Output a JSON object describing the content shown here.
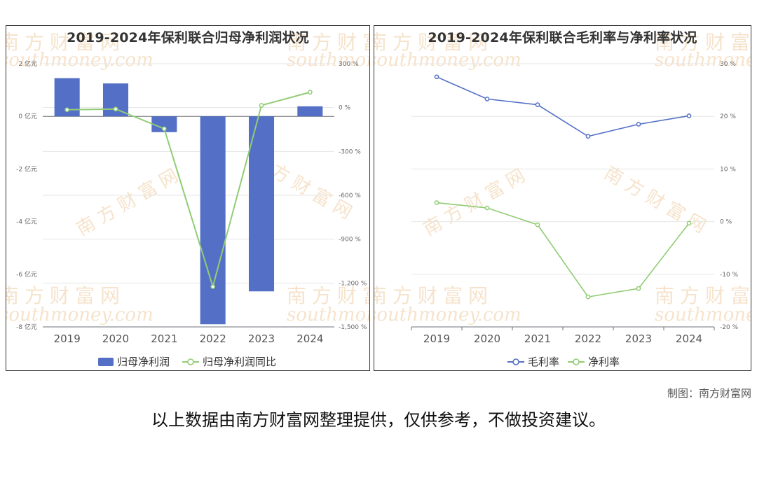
{
  "credit": "制图：南方财富网",
  "disclaimer": "以上数据由南方财富网整理提供，仅供参考，不做投资建议。",
  "watermark": {
    "cn": "南方财富网",
    "en": "southmoney.com",
    "color": "#f6e3cc"
  },
  "chart_data": [
    {
      "type": "bar+line",
      "title": "2019-2024年保利联合归母净利润状况",
      "categories": [
        "2019",
        "2020",
        "2021",
        "2022",
        "2023",
        "2024"
      ],
      "y_left": {
        "ticks": [
          "2 亿元",
          "0 亿元",
          "-2 亿元",
          "-4 亿元",
          "-6 亿元",
          "-8 亿元"
        ],
        "range": [
          -8,
          2
        ],
        "unit": "亿元"
      },
      "y_right": {
        "ticks": [
          "300 %",
          "0 %",
          "-300 %",
          "-600 %",
          "-900 %",
          "-1,200 %",
          "-1,500 %"
        ],
        "range": [
          -1500,
          300
        ],
        "unit": "%"
      },
      "series": [
        {
          "name": "归母净利润",
          "kind": "bar",
          "axis": "left",
          "color": "#5470c6",
          "values": [
            1.45,
            1.25,
            -0.6,
            -7.9,
            -6.65,
            0.38
          ]
        },
        {
          "name": "归母净利润同比",
          "kind": "line",
          "axis": "right",
          "color": "#91cc75",
          "values": [
            -15,
            -10,
            -145,
            -1225,
            15,
            105
          ]
        }
      ],
      "legend": "bottom-center",
      "grid": true
    },
    {
      "type": "line",
      "title": "2019-2024年保利联合毛利率与净利率状况",
      "categories": [
        "2019",
        "2020",
        "2021",
        "2022",
        "2023",
        "2024"
      ],
      "y_right": {
        "ticks": [
          "30 %",
          "20 %",
          "10 %",
          "0 %",
          "-10 %",
          "-20 %"
        ],
        "range": [
          -20,
          30
        ],
        "unit": "%"
      },
      "series": [
        {
          "name": "毛利率",
          "kind": "line",
          "color": "#5470c6",
          "values": [
            27.5,
            23.3,
            22.2,
            16.2,
            18.5,
            20.1
          ]
        },
        {
          "name": "净利率",
          "kind": "line",
          "color": "#91cc75",
          "values": [
            3.6,
            2.6,
            -0.6,
            -14.3,
            -12.7,
            -0.3
          ]
        }
      ],
      "legend": "bottom-center",
      "grid": true
    }
  ]
}
